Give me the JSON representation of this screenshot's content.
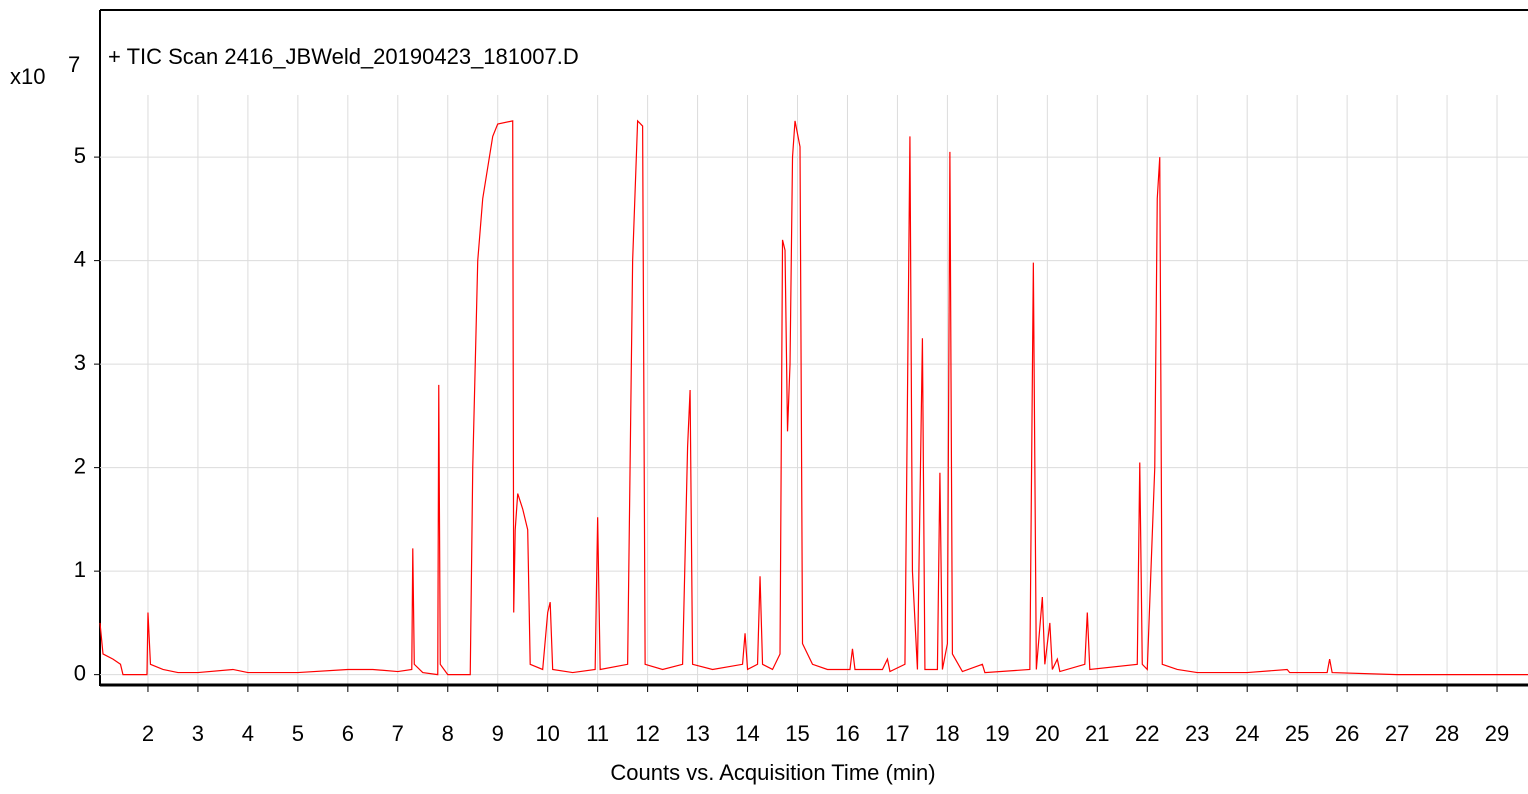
{
  "chart_data": {
    "type": "line",
    "title": "+ TIC Scan 2416_JBWeld_20190423_181007.D",
    "y_axis_label": "x10",
    "y_axis_exponent": 7,
    "x_axis_label": "Counts vs. Acquisition Time (min)",
    "xlim": [
      1.04,
      29.62
    ],
    "ylim": [
      -0.1,
      5.6
    ],
    "xticks": [
      2,
      3,
      4,
      5,
      6,
      7,
      8,
      9,
      10,
      11,
      12,
      13,
      14,
      15,
      16,
      17,
      18,
      19,
      20,
      21,
      22,
      23,
      24,
      25,
      26,
      27,
      28,
      29
    ],
    "yticks": [
      0,
      1,
      2,
      3,
      4,
      5
    ],
    "grid": true,
    "color": "#ff0000",
    "x": [
      1.04,
      1.1,
      1.3,
      1.45,
      1.5,
      1.98,
      2.0,
      2.05,
      2.3,
      2.6,
      3.0,
      3.7,
      4.0,
      5.0,
      6.0,
      6.5,
      7.0,
      7.28,
      7.3,
      7.33,
      7.5,
      7.8,
      7.82,
      7.85,
      8.0,
      8.45,
      8.5,
      8.6,
      8.7,
      8.8,
      8.9,
      9.0,
      9.3,
      9.32,
      9.35,
      9.4,
      9.5,
      9.6,
      9.65,
      9.9,
      10.0,
      10.05,
      10.1,
      10.5,
      10.95,
      11.0,
      11.05,
      11.6,
      11.7,
      11.8,
      11.9,
      11.95,
      12.3,
      12.7,
      12.8,
      12.85,
      12.9,
      13.3,
      13.9,
      13.95,
      14.0,
      14.2,
      14.25,
      14.3,
      14.5,
      14.65,
      14.7,
      14.75,
      14.8,
      14.85,
      14.9,
      14.95,
      15.05,
      15.1,
      15.3,
      15.6,
      16.05,
      16.1,
      16.15,
      16.7,
      16.8,
      16.85,
      17.15,
      17.25,
      17.3,
      17.4,
      17.5,
      17.55,
      17.8,
      17.85,
      17.9,
      18.0,
      18.05,
      18.1,
      18.3,
      18.7,
      18.75,
      19.65,
      19.72,
      19.78,
      19.9,
      19.95,
      20.05,
      20.1,
      20.2,
      20.25,
      20.75,
      20.8,
      20.85,
      21.8,
      21.85,
      21.9,
      22.0,
      22.15,
      22.2,
      22.25,
      22.3,
      22.6,
      23.0,
      24.0,
      24.8,
      24.85,
      25.6,
      25.65,
      25.7,
      27.0,
      29.62
    ],
    "values": [
      0.5,
      0.2,
      0.15,
      0.1,
      0.0,
      0.0,
      0.6,
      0.1,
      0.05,
      0.02,
      0.02,
      0.05,
      0.02,
      0.02,
      0.05,
      0.05,
      0.03,
      0.05,
      1.22,
      0.1,
      0.02,
      0.0,
      2.8,
      0.1,
      0.0,
      0.0,
      2.0,
      4.0,
      4.6,
      4.9,
      5.2,
      5.32,
      5.35,
      0.6,
      1.4,
      1.75,
      1.6,
      1.4,
      0.1,
      0.05,
      0.6,
      0.7,
      0.05,
      0.02,
      0.05,
      1.52,
      0.05,
      0.1,
      4.0,
      5.35,
      5.3,
      0.1,
      0.05,
      0.1,
      2.2,
      2.75,
      0.1,
      0.05,
      0.1,
      0.4,
      0.05,
      0.1,
      0.95,
      0.1,
      0.05,
      0.2,
      4.2,
      4.1,
      2.35,
      3.0,
      5.0,
      5.35,
      5.1,
      0.3,
      0.1,
      0.05,
      0.05,
      0.25,
      0.05,
      0.05,
      0.15,
      0.03,
      0.1,
      5.2,
      1.0,
      0.05,
      3.25,
      0.05,
      0.05,
      1.95,
      0.05,
      0.3,
      5.05,
      0.2,
      0.03,
      0.1,
      0.02,
      0.05,
      3.98,
      0.05,
      0.75,
      0.1,
      0.5,
      0.05,
      0.15,
      0.03,
      0.1,
      0.6,
      0.05,
      0.1,
      2.05,
      0.1,
      0.05,
      2.0,
      4.6,
      5.0,
      0.1,
      0.05,
      0.02,
      0.02,
      0.05,
      0.02,
      0.02,
      0.15,
      0.02,
      0.0,
      0.0
    ]
  }
}
